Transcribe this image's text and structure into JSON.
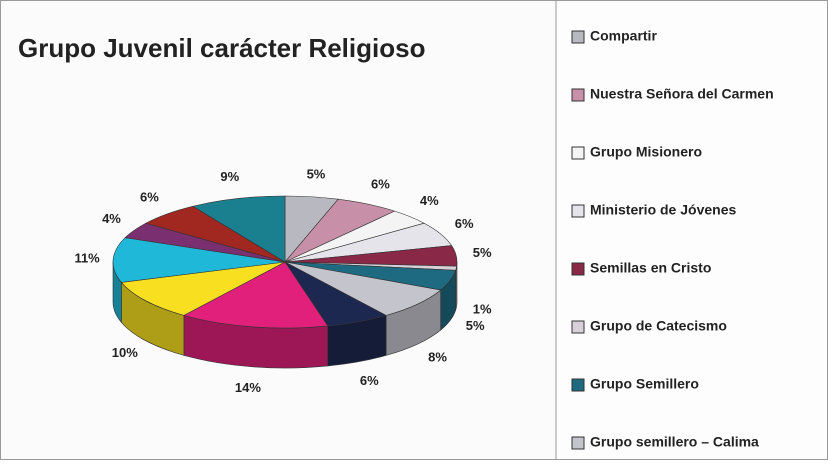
{
  "chart_data": {
    "type": "pie3d",
    "title": "Grupo Juvenil carácter Religioso",
    "categories": [
      "Compartir",
      "Nuestra Señora del Carmen",
      "Grupo Misionero",
      "Ministerio de Jóvenes",
      "Semillas en Cristo",
      "Grupo de Catecismo",
      "Grupo Semillero",
      "Grupo semillero – Calima",
      null,
      null,
      null,
      null,
      null,
      null,
      null
    ],
    "values": [
      5,
      6,
      4,
      6,
      5,
      1,
      5,
      8,
      6,
      14,
      10,
      11,
      4,
      6,
      9
    ],
    "value_labels": [
      "5%",
      "6%",
      "4%",
      "6%",
      "5%",
      "1%",
      "5%",
      "8%",
      "6%",
      "14%",
      "10%",
      "11%",
      "4%",
      "6%",
      "9%"
    ],
    "colors": [
      "#b8b8c0",
      "#c890a8",
      "#f4f4f4",
      "#e4e4ea",
      "#8a2848",
      "#d8d0d8",
      "#1e6a80",
      "#c4c4cc",
      "#1c2850",
      "#e0207a",
      "#f8e020",
      "#20b8d8",
      "#7a3070",
      "#a02820",
      "#1a8090"
    ]
  }
}
